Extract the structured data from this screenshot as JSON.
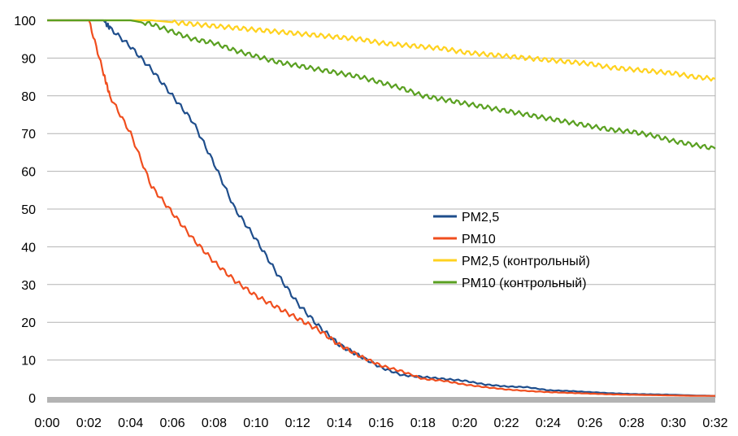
{
  "chart_data": {
    "type": "line",
    "title": "",
    "xlabel": "",
    "ylabel": "",
    "ylim": [
      0,
      100
    ],
    "yticks": [
      0,
      10,
      20,
      30,
      40,
      50,
      60,
      70,
      80,
      90,
      100
    ],
    "x_minutes_range": [
      0,
      32
    ],
    "x_tick_labels": [
      "0:00",
      "0:02",
      "0:04",
      "0:06",
      "0:08",
      "0:10",
      "0:12",
      "0:14",
      "0:16",
      "0:18",
      "0:20",
      "0:22",
      "0:24",
      "0:26",
      "0:28",
      "0:30",
      "0:32"
    ],
    "grid": true,
    "legend_position": "center-right",
    "x_minutes": [
      0,
      2,
      2.7,
      3,
      4,
      5,
      6,
      7,
      8,
      9,
      10,
      11,
      12,
      13,
      14,
      15,
      16,
      17,
      18,
      19,
      20,
      21,
      22,
      23,
      24,
      25,
      26,
      27,
      28,
      29,
      30,
      31,
      32
    ],
    "series": [
      {
        "name": "PM2,5",
        "color": "#1f4e8c",
        "values": [
          100,
          100,
          100,
          98,
          93,
          87,
          80,
          73,
          62,
          50,
          42,
          33,
          25,
          19,
          14,
          11,
          8,
          6,
          5.5,
          5,
          4.5,
          3.5,
          3,
          2.8,
          2,
          1.8,
          1.5,
          1.2,
          1,
          0.9,
          0.8,
          0.6,
          0.5
        ]
      },
      {
        "name": "PM10",
        "color": "#f04e1e",
        "values": [
          100,
          100,
          86,
          80,
          70,
          56,
          49,
          42,
          36,
          31,
          27,
          24,
          21,
          18,
          14,
          11,
          8.5,
          7,
          5,
          4.5,
          3.5,
          2.8,
          2.2,
          1.8,
          1.5,
          1.3,
          1.1,
          0.9,
          0.8,
          0.7,
          0.6,
          0.5,
          0.5
        ]
      },
      {
        "name": "PM2,5 (контрольный)",
        "color": "#ffd21f",
        "values": [
          100,
          100,
          100,
          100,
          100,
          100,
          99.5,
          99,
          98.5,
          98,
          97.5,
          97,
          96.5,
          96,
          95.5,
          95,
          94,
          93.5,
          93,
          92.5,
          91.5,
          91,
          90.5,
          90,
          89.5,
          89,
          88.5,
          87.5,
          87,
          86.5,
          86,
          85,
          84.5
        ]
      },
      {
        "name": "PM10 (контрольный)",
        "color": "#5aa021",
        "values": [
          100,
          100,
          100,
          100,
          100,
          99,
          97,
          95,
          94,
          92,
          90.5,
          89,
          88,
          87,
          86,
          85,
          83.5,
          82,
          80,
          79,
          78,
          77,
          76,
          75,
          74,
          73,
          72,
          71,
          70.5,
          69.5,
          68,
          67,
          66
        ]
      }
    ]
  }
}
